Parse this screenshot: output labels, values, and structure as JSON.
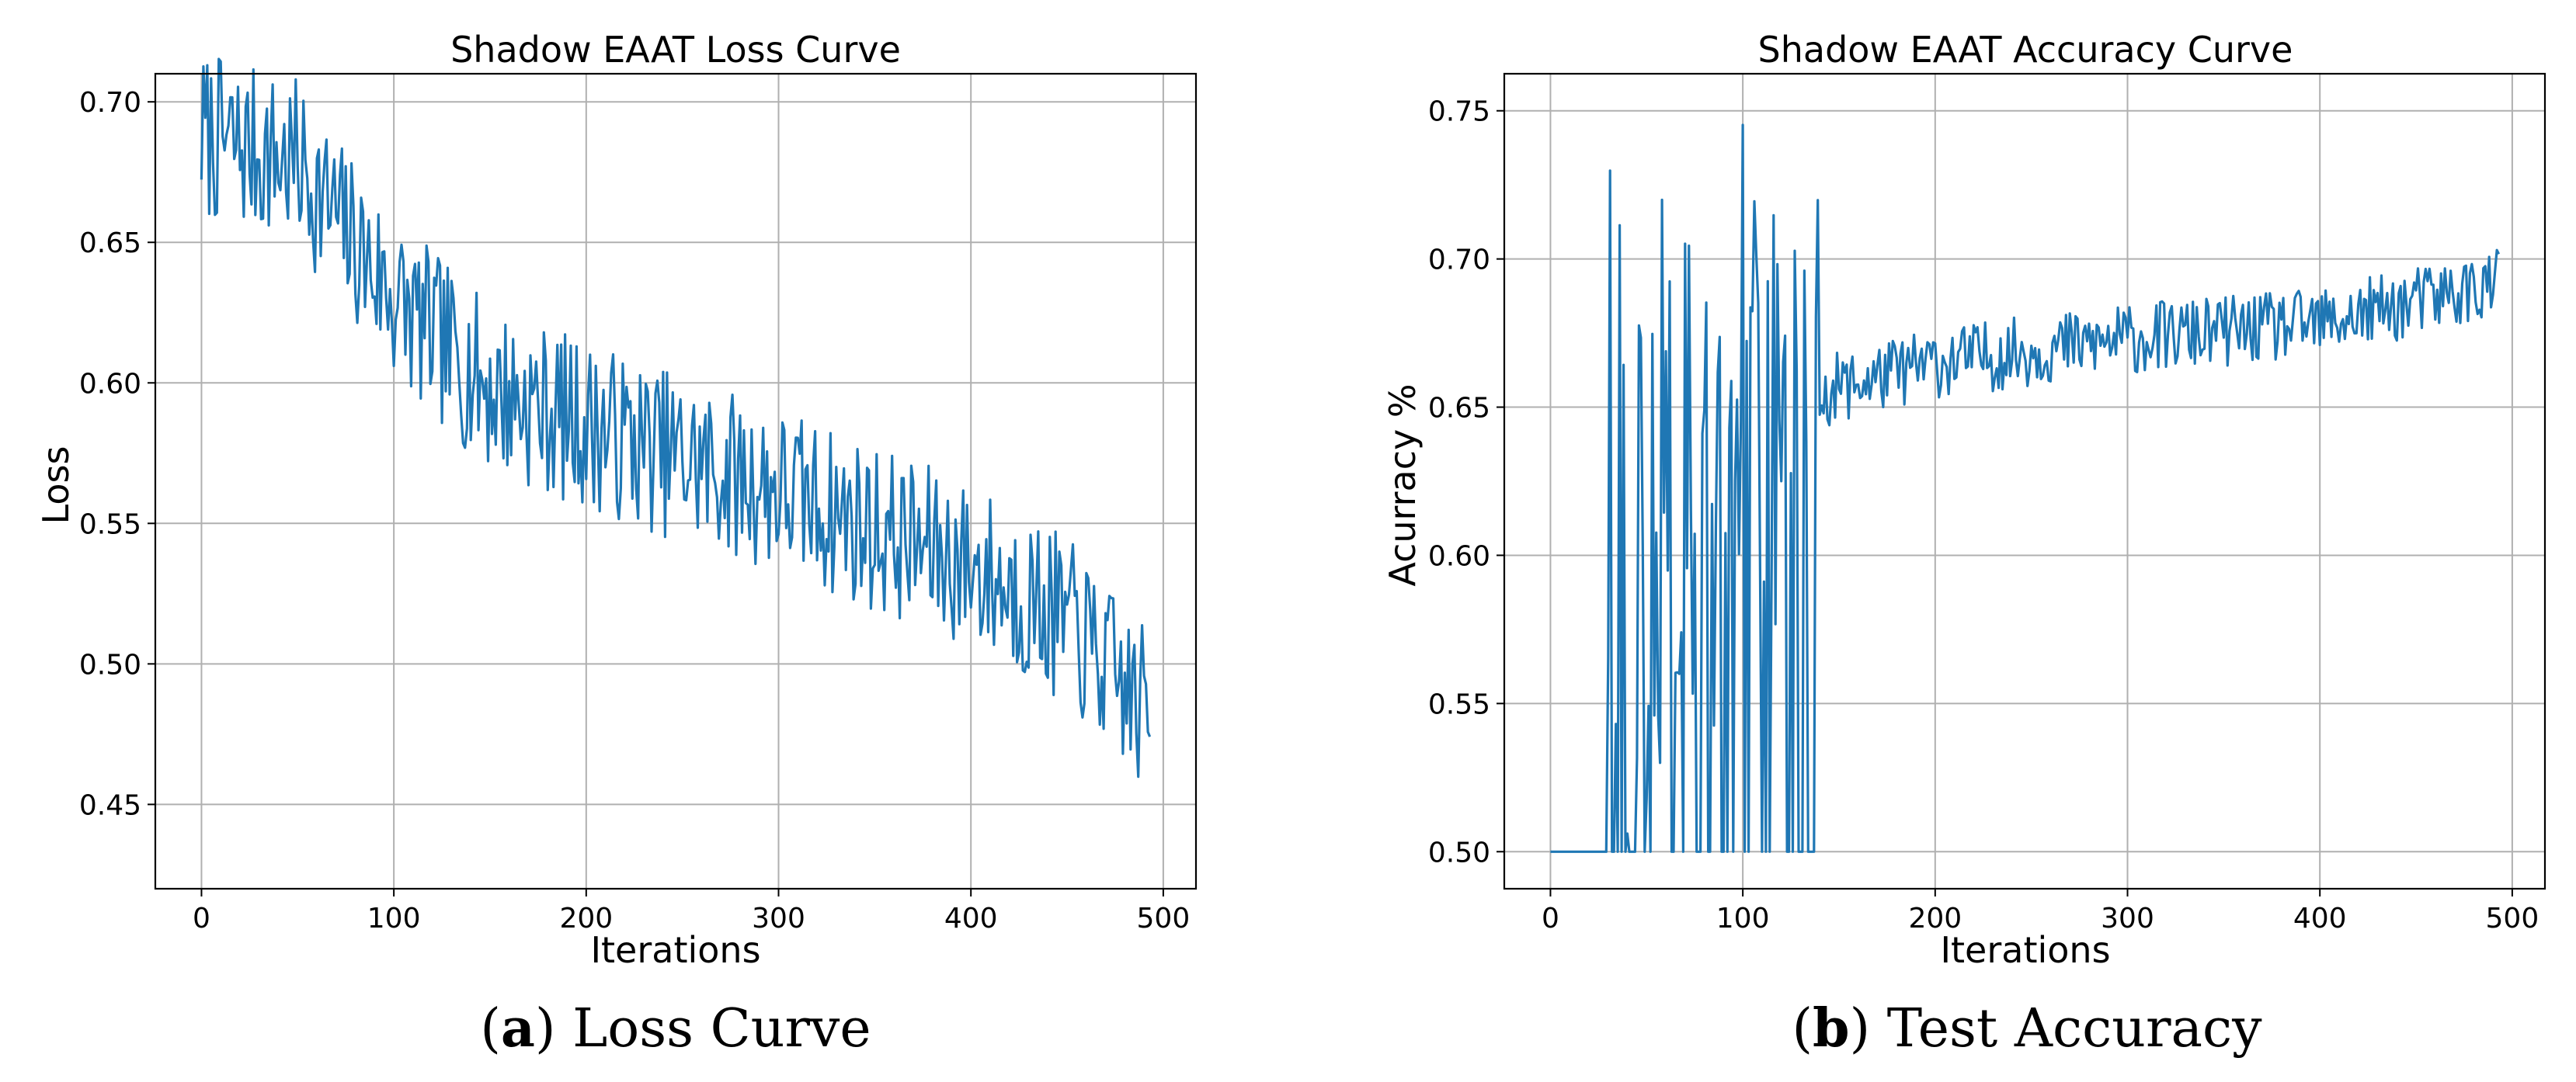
{
  "figure": {
    "captions": [
      {
        "letter": "a",
        "text": "Loss Curve"
      },
      {
        "letter": "b",
        "text": "Test Accuracy"
      }
    ]
  },
  "chart_data": [
    {
      "type": "line",
      "title": "Shadow EAAT Loss Curve",
      "xlabel": "Iterations",
      "ylabel": "Loss",
      "xlim": [
        -24,
        517
      ],
      "ylim": [
        0.42,
        0.71
      ],
      "xticks": [
        0,
        100,
        200,
        300,
        400,
        500
      ],
      "yticks": [
        0.45,
        0.5,
        0.55,
        0.6,
        0.65,
        0.7
      ],
      "xtick_labels": [
        "0",
        "100",
        "200",
        "300",
        "400",
        "500"
      ],
      "ytick_labels": [
        "0.45",
        "0.50",
        "0.55",
        "0.60",
        "0.65",
        "0.70"
      ],
      "grid": true,
      "line_color": "#1f77b4",
      "series": [
        {
          "name": "Loss",
          "x_start": 0,
          "x_step": 1,
          "n": 494,
          "trend": [
            [
              0,
              0.688
            ],
            [
              50,
              0.678
            ],
            [
              100,
              0.63
            ],
            [
              150,
              0.598
            ],
            [
              200,
              0.585
            ],
            [
              250,
              0.573
            ],
            [
              300,
              0.562
            ],
            [
              350,
              0.548
            ],
            [
              400,
              0.535
            ],
            [
              450,
              0.515
            ],
            [
              494,
              0.48
            ]
          ],
          "noise": 0.03,
          "seed": 7
        }
      ]
    },
    {
      "type": "line",
      "title": "Shadow EAAT Accuracy Curve",
      "xlabel": "Iterations",
      "ylabel": "Acurracy %",
      "xlim": [
        -24,
        517
      ],
      "ylim": [
        0.4875,
        0.7625
      ],
      "xticks": [
        0,
        100,
        200,
        300,
        400,
        500
      ],
      "yticks": [
        0.5,
        0.55,
        0.6,
        0.65,
        0.7,
        0.75
      ],
      "xtick_labels": [
        "0",
        "100",
        "200",
        "300",
        "400",
        "500"
      ],
      "ytick_labels": [
        "0.50",
        "0.55",
        "0.60",
        "0.65",
        "0.70",
        "0.75"
      ],
      "grid": true,
      "line_color": "#1f77b4",
      "series": [
        {
          "name": "Accuracy",
          "x_start": 0,
          "x_step": 1,
          "n": 494,
          "trend": [
            [
              0,
              0.5
            ],
            [
              30,
              0.5
            ],
            [
              80,
              0.6
            ],
            [
              140,
              0.655
            ],
            [
              200,
              0.665
            ],
            [
              300,
              0.673
            ],
            [
              400,
              0.678
            ],
            [
              494,
              0.692
            ]
          ],
          "noise": 0.012,
          "seed": 11
        }
      ]
    }
  ]
}
